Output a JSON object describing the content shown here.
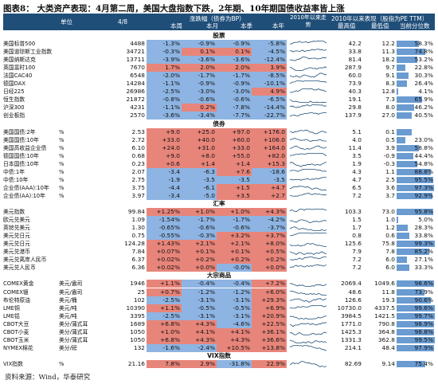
{
  "title": "图表8： 大类资产表现：4月第二周，美国大盘指数下跌，2年期、10年期国债收益率皆上涨",
  "source": "资料来源：Wind，华泰研究",
  "header": {
    "unit": "单位",
    "date": "4/8",
    "change_group": "涨跌幅（债券为BP）",
    "wk": "本周",
    "mo": "本月",
    "qt": "本季",
    "yr": "本年",
    "trend_group": "2010年以来走势",
    "range_group": "2010年以来表现（股指为PE TTM）",
    "hi": "最高值",
    "lo": "最低值",
    "pct": "当前分位数"
  },
  "colors": {
    "header_bg": "#1f4e79",
    "positive": "#e8857a",
    "negative": "#8db4e2",
    "bar": "#6a9bd1"
  },
  "sections": [
    {
      "name": "股票",
      "rows": [
        {
          "name": "美国标普500",
          "unit": "",
          "val": "4488",
          "wk": "-1.3%",
          "mo": "-0.9%",
          "qt": "-0.9%",
          "yr": "-5.8%",
          "hi": "42.2",
          "lo": "12.2",
          "pct": "58.3%",
          "p": 0.583
        },
        {
          "name": "美国道琼斯工业指数",
          "unit": "",
          "val": "34721",
          "wk": "-0.3%",
          "mo": "0.1%",
          "qt": "0.1%",
          "yr": "-4.5%",
          "hi": "33.8",
          "lo": "11.3",
          "pct": "74.8%",
          "p": 0.748
        },
        {
          "name": "美国纳斯达克",
          "unit": "",
          "val": "13711",
          "wk": "-3.9%",
          "mo": "-3.6%",
          "qt": "-3.6%",
          "yr": "-12.4%",
          "hi": "81.4",
          "lo": "18.2",
          "pct": "53.2%",
          "p": 0.532
        },
        {
          "name": "英国富时100",
          "unit": "",
          "val": "7670",
          "wk": "1.7%",
          "mo": "2.0%",
          "qt": "2.0%",
          "yr": "3.9%",
          "hi": "287.9",
          "lo": "9.7",
          "pct": "22.8%",
          "p": 0.228
        },
        {
          "name": "法国CAC40",
          "unit": "",
          "val": "6548",
          "wk": "-2.0%",
          "mo": "-1.7%",
          "qt": "-1.7%",
          "yr": "-8.5%",
          "hi": "60.0",
          "lo": "9.1",
          "pct": "30.3%",
          "p": 0.303
        },
        {
          "name": "德国DAX",
          "unit": "",
          "val": "14284",
          "wk": "-1.1%",
          "mo": "-0.9%",
          "qt": "-0.9%",
          "yr": "-10.1%",
          "hi": "73.9",
          "lo": "8.3",
          "pct": "26.4%",
          "p": 0.264
        },
        {
          "name": "日经225",
          "unit": "",
          "val": "26986",
          "wk": "-2.5%",
          "mo": "-3.0%",
          "qt": "-3.0%",
          "yr": "4.9%",
          "hi": "40.3",
          "lo": "12.8",
          "pct": "4.1%",
          "p": 0.041
        },
        {
          "name": "恒生指数",
          "unit": "",
          "val": "21872",
          "wk": "-0.8%",
          "mo": "-0.6%",
          "qt": "-0.6%",
          "yr": "-6.5%",
          "hi": "19.1",
          "lo": "7.3",
          "pct": "65.9%",
          "p": 0.659
        },
        {
          "name": "沪深300",
          "unit": "",
          "val": "4231",
          "wk": "-1.1%",
          "mo": "0.2%",
          "qt": "-7.8%",
          "yr": "-14.4%",
          "hi": "29.8",
          "lo": "8.0",
          "pct": "46.2%",
          "p": 0.462
        },
        {
          "name": "创业板指",
          "unit": "",
          "val": "2570",
          "wk": "-3.6%",
          "mo": "-3.4%",
          "qt": "-7.7%",
          "yr": "-22.7%",
          "hi": "137.9",
          "lo": "27.0",
          "pct": "40.5%",
          "p": 0.405
        }
      ]
    },
    {
      "name": "债券",
      "rows": [
        {
          "name": "美国国债:2年",
          "unit": "%",
          "val": "2.53",
          "wk": "+9.0",
          "mo": "+25.0",
          "qt": "+97.0",
          "yr": "+176.0",
          "hi": "5.1",
          "lo": "0.1",
          "pct": "",
          "p": 0.4
        },
        {
          "name": "美国国债:10年",
          "unit": "%",
          "val": "2.72",
          "wk": "+33.0",
          "mo": "+40.0",
          "qt": "+60.0",
          "yr": "+106.0",
          "hi": "4.0",
          "lo": "0.5",
          "pct": "23.0%",
          "p": 0.23
        },
        {
          "name": "美国高收益企业债",
          "unit": "%",
          "val": "6.10",
          "wk": "+24.0",
          "mo": "+31.0",
          "qt": "+33.0",
          "yr": "+164.0",
          "hi": "11.4",
          "lo": "3.9",
          "pct": "58.8%",
          "p": 0.588
        },
        {
          "name": "德国国债:10年",
          "unit": "%",
          "val": "0.68",
          "wk": "+9.0",
          "mo": "+8.0",
          "qt": "+55.0",
          "yr": "+82.0",
          "hi": "3.5",
          "lo": "-0.9",
          "pct": "44.4%",
          "p": 0.444
        },
        {
          "name": "日本国债:10年",
          "unit": "%",
          "val": "0.23",
          "wk": "+0.6",
          "mo": "+1.4",
          "qt": "+1.4",
          "yr": "+15.3",
          "hi": "1.9",
          "lo": "-0.3",
          "pct": "54.8%",
          "p": 0.548
        },
        {
          "name": "中债:1年",
          "unit": "%",
          "val": "2.07",
          "wk": "-3.4",
          "mo": "-6.3",
          "qt": "+7.6",
          "yr": "-18.6",
          "hi": "4.3",
          "lo": "1.1",
          "pct": "88.8%",
          "p": 0.888
        },
        {
          "name": "中债:10年",
          "unit": "%",
          "val": "2.75",
          "wk": "-1.9",
          "mo": "-3.5",
          "qt": "-3.5",
          "yr": "-3.5",
          "hi": "4.7",
          "lo": "2.5",
          "pct": "95.5%",
          "p": 0.955
        },
        {
          "name": "企业债(AAA):10年",
          "unit": "%",
          "val": "3.75",
          "wk": "-4.4",
          "mo": "-6.1",
          "qt": "+1.5",
          "yr": "+4.7",
          "hi": "6.5",
          "lo": "3.6",
          "pct": "97.3%",
          "p": 0.973
        },
        {
          "name": "企业债(AA):10年",
          "unit": "%",
          "val": "3.97",
          "wk": "-3.4",
          "mo": "-5.0",
          "qt": "+3.5",
          "yr": "+2.7",
          "hi": "7.2",
          "lo": "3.7",
          "pct": "92.9%",
          "p": 0.929
        }
      ]
    },
    {
      "name": "汇率",
      "rows": [
        {
          "name": "美元指数",
          "unit": "",
          "val": "99.84",
          "wk": "+1.25%",
          "mo": "+1.0%",
          "qt": "+1.0%",
          "yr": "+4.3%",
          "hi": "103.3",
          "lo": "73.0",
          "pct": "95.8%",
          "p": 0.958
        },
        {
          "name": "欧元兑美元",
          "unit": "",
          "val": "1.09",
          "wk": "-1.54%",
          "mo": "-1.7%",
          "qt": "-1.7%",
          "yr": "-4.2%",
          "hi": "1.5",
          "lo": "1.0",
          "pct": "5.0%",
          "p": 0.05
        },
        {
          "name": "英镑兑美元",
          "unit": "",
          "val": "1.30",
          "wk": "-0.65%",
          "mo": "-0.6%",
          "qt": "-0.6%",
          "yr": "-3.7%",
          "hi": "1.7",
          "lo": "1.2",
          "pct": "28.3%",
          "p": 0.283
        },
        {
          "name": "美元兑日元",
          "unit": "",
          "val": "0.75",
          "wk": "-0.55%",
          "mo": "-0.3%",
          "qt": "+3.2%",
          "yr": "+3.7%",
          "hi": "0.8",
          "lo": "0.6",
          "pct": "33.8%",
          "p": 0.338
        },
        {
          "name": "美元兑日元",
          "unit": "",
          "val": "124.28",
          "wk": "+1.43%",
          "mo": "+2.1%",
          "qt": "+2.1%",
          "yr": "+8.0%",
          "hi": "125.6",
          "lo": "75.8",
          "pct": "99.3%",
          "p": 0.993
        },
        {
          "name": "美元兑港币",
          "unit": "",
          "val": "7.84",
          "wk": "+0.07%",
          "mo": "+0.1%",
          "qt": "+0.1%",
          "yr": "+0.5%",
          "hi": "7.9",
          "lo": "7.8",
          "pct": "85.2%",
          "p": 0.852
        },
        {
          "name": "美元兑离岸人民币",
          "unit": "",
          "val": "6.37",
          "wk": "+0.02%",
          "mo": "+0.2%",
          "qt": "+0.2%",
          "yr": "+0.2%",
          "hi": "7.2",
          "lo": "6.0",
          "pct": "27.1%",
          "p": 0.271
        },
        {
          "name": "美元兑人民币",
          "unit": "",
          "val": "6.36",
          "wk": "+0.02%",
          "mo": "+0.0%",
          "qt": "-0.0%",
          "yr": "+0.0%",
          "hi": "7.2",
          "lo": "6.0",
          "pct": "33.3%",
          "p": 0.333
        }
      ]
    },
    {
      "name": "大宗商品",
      "rows": [
        {
          "name": "COMEX黄金",
          "unit": "美元/盎司",
          "val": "1946",
          "wk": "+1.1%",
          "mo": "-0.4%",
          "qt": "-0.4%",
          "yr": "+7.2%",
          "hi": "2069.4",
          "lo": "1049.6",
          "pct": "98.6%",
          "p": 0.986
        },
        {
          "name": "COMEX银",
          "unit": "美元/盎司",
          "val": "25",
          "wk": "+0.7%",
          "mo": "-1.2%",
          "qt": "-1.2%",
          "yr": "+6.0%",
          "hi": "48.6",
          "lo": "11.8",
          "pct": "73.9%",
          "p": 0.739
        },
        {
          "name": "布伦特原油",
          "unit": "美元/桶",
          "val": "102",
          "wk": "-2.5%",
          "mo": "-3.1%",
          "qt": "-3.1%",
          "yr": "+29.3%",
          "hi": "126.6",
          "lo": "19.3",
          "pct": "90.6%",
          "p": 0.906
        },
        {
          "name": "LME铜",
          "unit": "美元/吨",
          "val": "10390",
          "wk": "+1.1%",
          "mo": "-0.5%",
          "qt": "-0.5%",
          "yr": "+6.9%",
          "hi": "10730.0",
          "lo": "4337.5",
          "pct": "99.6%",
          "p": 0.996
        },
        {
          "name": "LME铝",
          "unit": "美元/吨",
          "val": "3395",
          "wk": "-2.5%",
          "mo": "-3.1%",
          "qt": "-3.1%",
          "yr": "+20.9%",
          "hi": "3984.5",
          "lo": "1421.5",
          "pct": "99.7%",
          "p": 0.997
        },
        {
          "name": "CBOT大豆",
          "unit": "美分/蒲式耳",
          "val": "1689",
          "wk": "+6.8%",
          "mo": "+4.3%",
          "qt": "-4.6%",
          "yr": "+22.5%",
          "hi": "1771.0",
          "lo": "790.8",
          "pct": "98.9%",
          "p": 0.989
        },
        {
          "name": "CBOT小麦",
          "unit": "美分/蒲式耳",
          "val": "1050",
          "wk": "+1.0%",
          "mo": "+4.1%",
          "qt": "+4.1%",
          "yr": "+36.1%",
          "hi": "1425.3",
          "lo": "364.8",
          "pct": "98.8%",
          "p": 0.988
        },
        {
          "name": "CBOT玉米",
          "unit": "美分/蒲式耳",
          "val": "1050",
          "wk": "+6.8%",
          "mo": "+4.3%",
          "qt": "+4.3%",
          "yr": "+36.6%",
          "hi": "1331.3",
          "lo": "362.8",
          "pct": "99.5%",
          "p": 0.995
        },
        {
          "name": "NYMEX棉花",
          "unit": "美分/磅",
          "val": "132",
          "wk": "-1.6%",
          "mo": "-2.4%",
          "qt": "+10.5%",
          "yr": "+13.8%",
          "hi": "214.1",
          "lo": "48.4",
          "pct": "97.9%",
          "p": 0.979
        }
      ]
    },
    {
      "name": "VIX指数",
      "rows": [
        {
          "name": "VIX指数",
          "unit": "%",
          "val": "21.16",
          "wk": "7.8%",
          "mo": "2.9%",
          "qt": "-31.8%",
          "yr": "22.9%",
          "hi": "82.69",
          "lo": "9.14",
          "pct": "75.4%",
          "p": 0.754
        }
      ]
    }
  ]
}
